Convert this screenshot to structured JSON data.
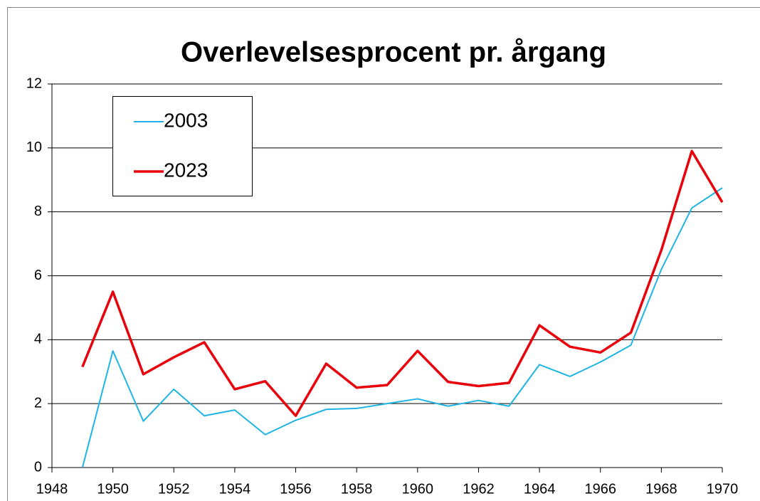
{
  "chart_data": {
    "type": "line",
    "title": "Overlevelsesprocent pr. årgang",
    "x": [
      1949,
      1950,
      1951,
      1952,
      1953,
      1954,
      1955,
      1956,
      1957,
      1958,
      1959,
      1960,
      1961,
      1962,
      1963,
      1964,
      1965,
      1966,
      1967,
      1968,
      1969,
      1970
    ],
    "series": [
      {
        "name": "2003",
        "color": "#1fb4e6",
        "values": [
          0,
          3.65,
          1.45,
          2.45,
          1.62,
          1.8,
          1.03,
          1.48,
          1.82,
          1.85,
          2.0,
          2.15,
          1.92,
          2.1,
          1.92,
          3.22,
          2.85,
          3.3,
          3.83,
          6.2,
          8.12,
          8.75
        ]
      },
      {
        "name": "2023",
        "color": "#e8000a",
        "values": [
          3.15,
          5.5,
          2.92,
          3.45,
          3.92,
          2.45,
          2.7,
          1.62,
          3.25,
          2.5,
          2.58,
          3.65,
          2.68,
          2.55,
          2.65,
          4.45,
          3.78,
          3.6,
          4.22,
          6.8,
          9.9,
          8.3
        ]
      }
    ],
    "xlim": [
      1948,
      1970
    ],
    "xticks": [
      1948,
      1950,
      1952,
      1954,
      1956,
      1958,
      1960,
      1962,
      1964,
      1966,
      1968,
      1970
    ],
    "ylim": [
      0,
      12
    ],
    "yticks": [
      0,
      2,
      4,
      6,
      8,
      10,
      12
    ],
    "grid": true,
    "legend": "upper left"
  }
}
